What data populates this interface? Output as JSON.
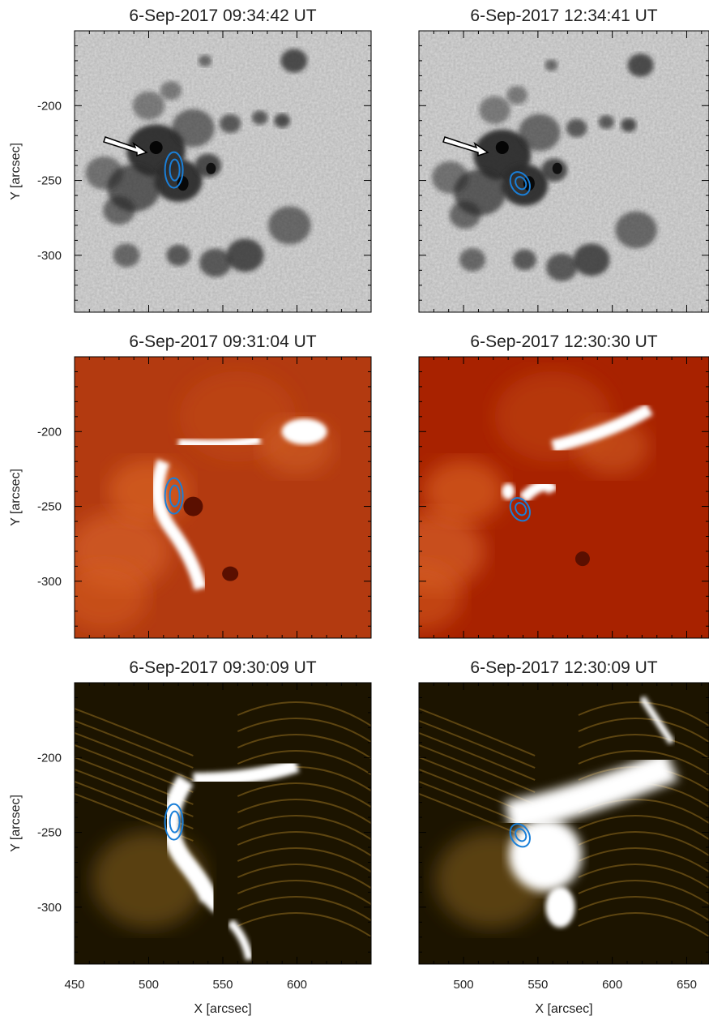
{
  "figure": {
    "panels": [
      {
        "id": "hmi-1",
        "title": "6-Sep-2017 09:34:42 UT",
        "kind": "continuum",
        "xlim": [
          450,
          650
        ],
        "ylim": [
          -338,
          -150
        ],
        "contour_center": [
          517,
          -243
        ],
        "arrow": true,
        "show_y_ticklabels": true,
        "show_x_ticklabels": false
      },
      {
        "id": "hmi-2",
        "title": "6-Sep-2017 12:34:41 UT",
        "kind": "continuum",
        "xlim": [
          470,
          665
        ],
        "ylim": [
          -338,
          -150
        ],
        "contour_center": [
          538,
          -252
        ],
        "arrow": true,
        "show_y_ticklabels": false,
        "show_x_ticklabels": false
      },
      {
        "id": "aia1600-1",
        "title": "6-Sep-2017 09:31:04 UT",
        "kind": "uv1600",
        "xlim": [
          450,
          650
        ],
        "ylim": [
          -338,
          -150
        ],
        "contour_center": [
          517,
          -243
        ],
        "arrow": false,
        "show_y_ticklabels": true,
        "show_x_ticklabels": false
      },
      {
        "id": "aia1600-2",
        "title": "6-Sep-2017 12:30:30 UT",
        "kind": "uv1600",
        "xlim": [
          470,
          665
        ],
        "ylim": [
          -338,
          -150
        ],
        "contour_center": [
          538,
          -252
        ],
        "arrow": false,
        "show_y_ticklabels": false,
        "show_x_ticklabels": false
      },
      {
        "id": "aia171-1",
        "title": "6-Sep-2017 09:30:09 UT",
        "kind": "euv171",
        "xlim": [
          450,
          650
        ],
        "ylim": [
          -338,
          -150
        ],
        "contour_center": [
          517,
          -243
        ],
        "arrow": false,
        "show_y_ticklabels": true,
        "show_x_ticklabels": true
      },
      {
        "id": "aia171-2",
        "title": "6-Sep-2017 12:30:09 UT",
        "kind": "euv171",
        "xlim": [
          470,
          665
        ],
        "ylim": [
          -338,
          -150
        ],
        "contour_center": [
          538,
          -252
        ],
        "arrow": false,
        "show_y_ticklabels": false,
        "show_x_ticklabels": true
      }
    ],
    "xlabel": "X [arcsec]",
    "ylabel": "Y [arcsec]",
    "x_ticks_left": [
      450,
      500,
      550,
      600
    ],
    "x_ticks_right": [
      500,
      550,
      600,
      650
    ],
    "y_ticks": [
      -200,
      -250,
      -300
    ],
    "contour_color": "#1a7fd8",
    "colors": {
      "uv_dark": "#a82200",
      "uv_mid": "#e8601c",
      "uv_bright": "#ffffff",
      "euv_dark": "#1c1400",
      "euv_mid": "#d7a030",
      "euv_bright": "#ffffff"
    }
  }
}
